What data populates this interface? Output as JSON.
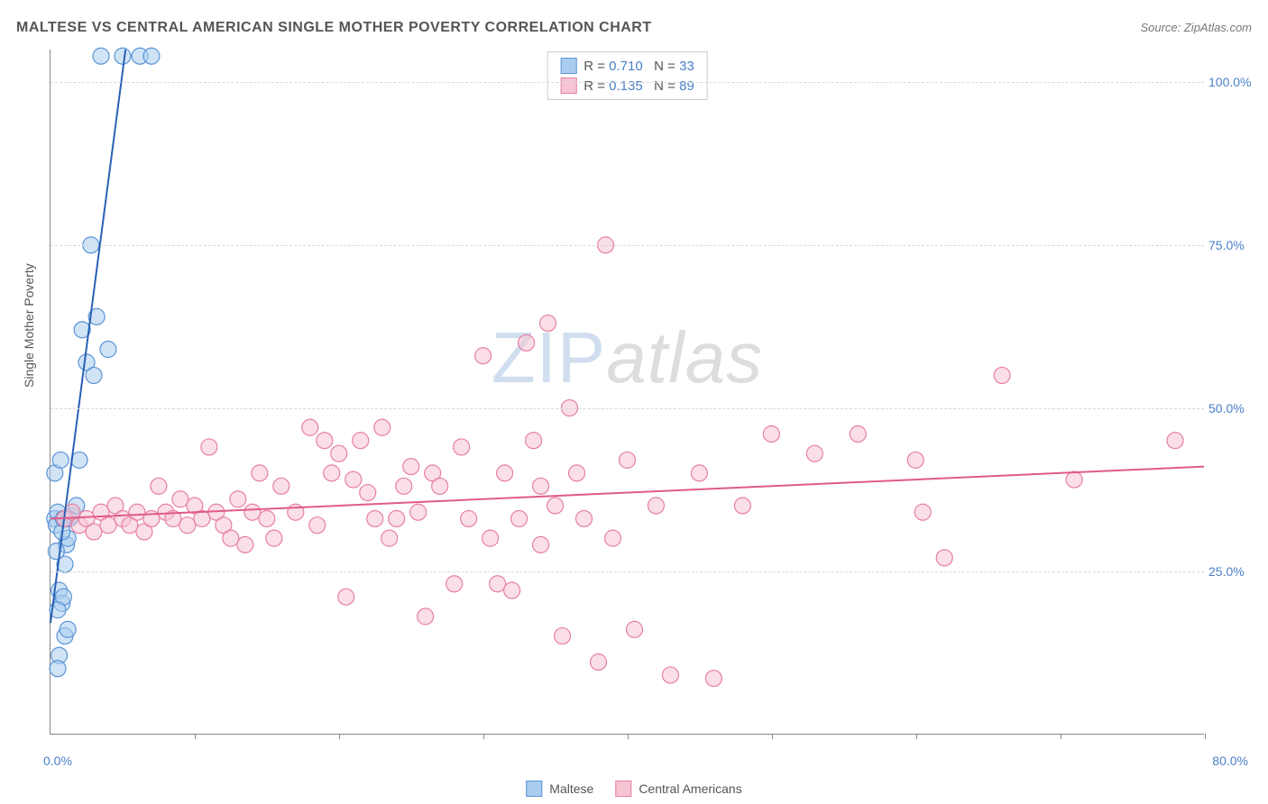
{
  "title": "MALTESE VS CENTRAL AMERICAN SINGLE MOTHER POVERTY CORRELATION CHART",
  "source_label": "Source: ZipAtlas.com",
  "yaxis_label": "Single Mother Poverty",
  "watermark": {
    "part1": "ZIP",
    "part2": "atlas"
  },
  "chart": {
    "type": "scatter",
    "xlim": [
      0,
      80
    ],
    "ylim": [
      0,
      105
    ],
    "xtick_step": 10,
    "ytick_levels": [
      25,
      50,
      75,
      100
    ],
    "ytick_labels": [
      "25.0%",
      "50.0%",
      "75.0%",
      "100.0%"
    ],
    "xlabel_min": "0.0%",
    "xlabel_max": "80.0%",
    "background_color": "#ffffff",
    "grid_color": "#d8d8d8",
    "axis_color": "#888888",
    "text_color": "#555555",
    "value_color": "#4a7fc9",
    "marker_radius": 9,
    "marker_opacity": 0.55,
    "line_width": 2
  },
  "series": [
    {
      "name": "Maltese",
      "fill_color": "#a9cdef",
      "stroke_color": "#5a93d6",
      "line_color": "#2a61b5",
      "r_value": "0.710",
      "n_value": "33",
      "trend": {
        "x1": 0,
        "y1": 17,
        "x2": 5.2,
        "y2": 105
      },
      "points": [
        [
          0.3,
          33
        ],
        [
          0.5,
          34
        ],
        [
          0.4,
          32
        ],
        [
          0.6,
          22
        ],
        [
          0.8,
          20
        ],
        [
          0.9,
          21
        ],
        [
          1.0,
          26
        ],
        [
          1.1,
          29
        ],
        [
          1.2,
          30
        ],
        [
          0.4,
          28
        ],
        [
          0.3,
          40
        ],
        [
          0.7,
          42
        ],
        [
          1.3,
          33
        ],
        [
          1.5,
          33.5
        ],
        [
          1.0,
          15
        ],
        [
          1.2,
          16
        ],
        [
          0.6,
          12
        ],
        [
          0.5,
          10
        ],
        [
          0.8,
          31
        ],
        [
          0.9,
          33
        ],
        [
          1.8,
          35
        ],
        [
          2.0,
          42
        ],
        [
          2.5,
          57
        ],
        [
          3.0,
          55
        ],
        [
          2.2,
          62
        ],
        [
          3.2,
          64
        ],
        [
          4.0,
          59
        ],
        [
          2.8,
          75
        ],
        [
          3.5,
          104
        ],
        [
          5.0,
          104
        ],
        [
          6.2,
          104
        ],
        [
          7.0,
          104
        ],
        [
          0.5,
          19
        ]
      ]
    },
    {
      "name": "Central Americans",
      "fill_color": "#f6c5d3",
      "stroke_color": "#e77fa3",
      "line_color": "#e05a8a",
      "r_value": "0.135",
      "n_value": "89",
      "trend": {
        "x1": 0,
        "y1": 33,
        "x2": 80,
        "y2": 41
      },
      "points": [
        [
          1.0,
          33
        ],
        [
          1.5,
          34
        ],
        [
          2.0,
          32
        ],
        [
          2.5,
          33
        ],
        [
          3.0,
          31
        ],
        [
          3.5,
          34
        ],
        [
          4.0,
          32
        ],
        [
          4.5,
          35
        ],
        [
          5.0,
          33
        ],
        [
          5.5,
          32
        ],
        [
          6.0,
          34
        ],
        [
          6.5,
          31
        ],
        [
          7.0,
          33
        ],
        [
          7.5,
          38
        ],
        [
          8.0,
          34
        ],
        [
          8.5,
          33
        ],
        [
          9.0,
          36
        ],
        [
          9.5,
          32
        ],
        [
          10.0,
          35
        ],
        [
          10.5,
          33
        ],
        [
          11.0,
          44
        ],
        [
          11.5,
          34
        ],
        [
          12.0,
          32
        ],
        [
          12.5,
          30
        ],
        [
          13.0,
          36
        ],
        [
          13.5,
          29
        ],
        [
          14.0,
          34
        ],
        [
          14.5,
          40
        ],
        [
          15.0,
          33
        ],
        [
          15.5,
          30
        ],
        [
          16.0,
          38
        ],
        [
          17.0,
          34
        ],
        [
          18.0,
          47
        ],
        [
          18.5,
          32
        ],
        [
          19.0,
          45
        ],
        [
          19.5,
          40
        ],
        [
          20.0,
          43
        ],
        [
          20.5,
          21
        ],
        [
          21.0,
          39
        ],
        [
          21.5,
          45
        ],
        [
          22.0,
          37
        ],
        [
          22.5,
          33
        ],
        [
          23.0,
          47
        ],
        [
          23.5,
          30
        ],
        [
          24.0,
          33
        ],
        [
          24.5,
          38
        ],
        [
          25.0,
          41
        ],
        [
          25.5,
          34
        ],
        [
          26.0,
          18
        ],
        [
          26.5,
          40
        ],
        [
          27.0,
          38
        ],
        [
          28.0,
          23
        ],
        [
          28.5,
          44
        ],
        [
          29.0,
          33
        ],
        [
          30.0,
          58
        ],
        [
          30.5,
          30
        ],
        [
          31.0,
          23
        ],
        [
          31.5,
          40
        ],
        [
          32.0,
          22
        ],
        [
          32.5,
          33
        ],
        [
          33.0,
          60
        ],
        [
          33.5,
          45
        ],
        [
          34.0,
          29
        ],
        [
          34.5,
          63
        ],
        [
          35.0,
          35
        ],
        [
          35.5,
          15
        ],
        [
          36.0,
          50
        ],
        [
          36.5,
          40
        ],
        [
          37.0,
          33
        ],
        [
          38.0,
          11
        ],
        [
          38.5,
          75
        ],
        [
          39.0,
          30
        ],
        [
          40.0,
          42
        ],
        [
          40.5,
          16
        ],
        [
          42.0,
          35
        ],
        [
          43.0,
          9
        ],
        [
          45.0,
          40
        ],
        [
          46.0,
          8.5
        ],
        [
          48.0,
          35
        ],
        [
          50.0,
          46
        ],
        [
          53.0,
          43
        ],
        [
          56.0,
          46
        ],
        [
          60.0,
          42
        ],
        [
          60.5,
          34
        ],
        [
          62.0,
          27
        ],
        [
          66.0,
          55
        ],
        [
          71.0,
          39
        ],
        [
          78.0,
          45
        ],
        [
          34.0,
          38
        ]
      ]
    }
  ],
  "legend_top_rows": [
    {
      "series": 0
    },
    {
      "series": 1
    }
  ],
  "legend_bottom": [
    {
      "series": 0
    },
    {
      "series": 1
    }
  ]
}
